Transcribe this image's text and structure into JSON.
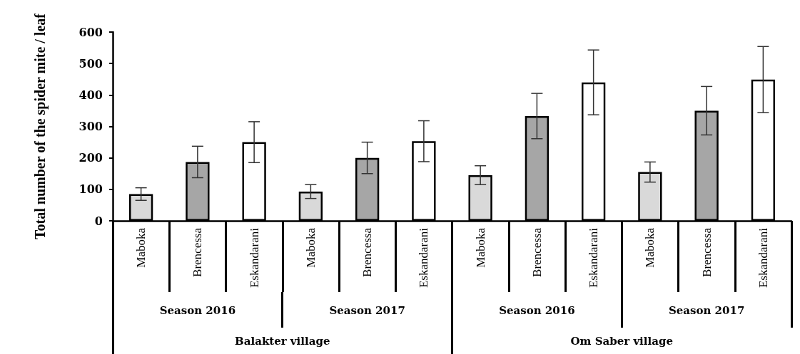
{
  "chart_data": {
    "type": "bar",
    "ylabel": "Total number of the spider mite / leaf",
    "categories": [
      "Maboka",
      "Brencessa",
      "Eskandarani",
      "Maboka",
      "Brencessa",
      "Eskandarani",
      "Maboka",
      "Brencessa",
      "Eskandarani",
      "Maboka",
      "Brencessa",
      "Eskandarani"
    ],
    "values": [
      85,
      187,
      250,
      93,
      200,
      253,
      145,
      333,
      440,
      155,
      350,
      449
    ],
    "errors": [
      20,
      50,
      65,
      22,
      50,
      65,
      30,
      72,
      103,
      32,
      77,
      105
    ],
    "colors": [
      "#d9d9d9",
      "#a6a6a6",
      "#ffffff",
      "#d9d9d9",
      "#a6a6a6",
      "#ffffff",
      "#d9d9d9",
      "#a6a6a6",
      "#ffffff",
      "#d9d9d9",
      "#a6a6a6",
      "#ffffff"
    ],
    "annotations": [
      "Season 2016",
      "Season 2017",
      "Season 2016",
      "Season 2017",
      "Balakter village",
      "Om Saber village"
    ],
    "ylim": [
      0,
      600
    ],
    "yticks": [
      0,
      100,
      200,
      300,
      400,
      500,
      600
    ],
    "grid": false
  }
}
